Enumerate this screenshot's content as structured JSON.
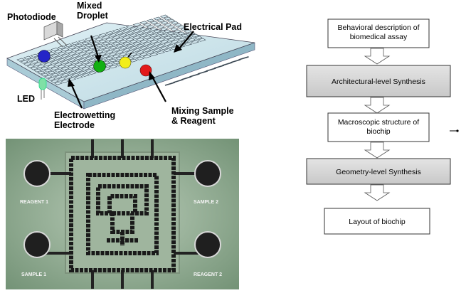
{
  "schematic": {
    "labels": {
      "photodiode": "Photodiode",
      "mixed_droplet": "Mixed\nDroplet",
      "electrical_pad": "Electrical Pad",
      "led": "LED",
      "electrowetting_electrode": "Electrowetting\nElectrode",
      "mixing_sample_reagent": "Mixing Sample\n& Reagent"
    },
    "droplet_colors": [
      "#2424c8",
      "#12b012",
      "#f2ee1a",
      "#e31a1a"
    ]
  },
  "photo": {
    "labels": [
      "REAGENT 1",
      "SAMPLE 2",
      "SAMPLE 1",
      "REAGENT 2"
    ]
  },
  "flow": {
    "steps": [
      "Behavioral description of\nbiomedical assay",
      "Architectural-level Synthesis",
      "Macroscopic structure of\nbiochip",
      "Geometry-level Synthesis",
      "Layout of biochip"
    ],
    "shaded_steps": [
      1,
      3
    ]
  }
}
